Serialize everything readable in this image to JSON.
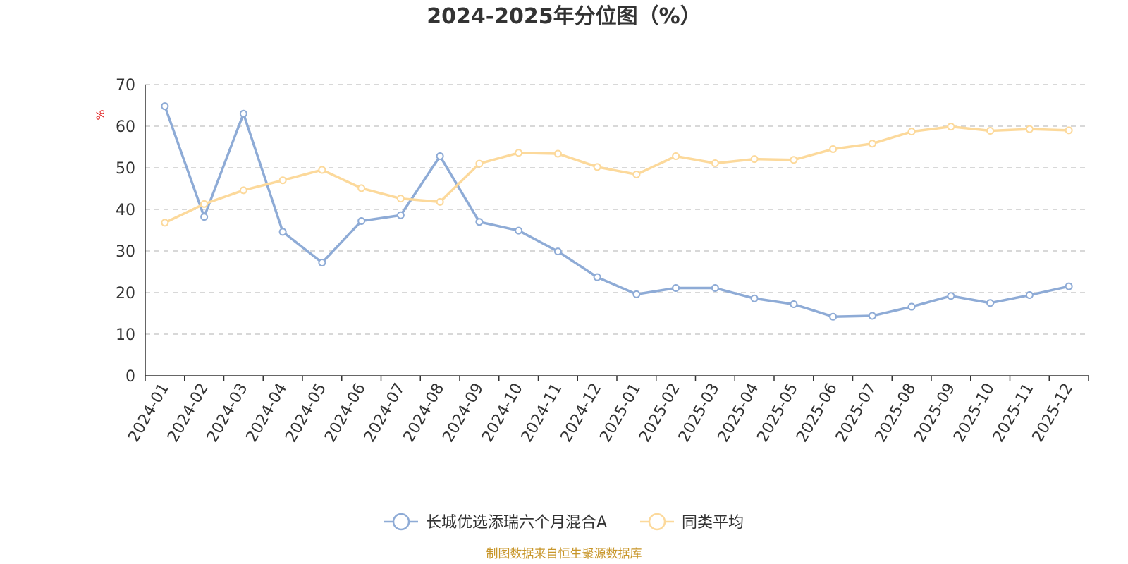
{
  "chart_data": {
    "type": "line",
    "title": "2024-2025年分位图（%）",
    "ylabel": "%",
    "xlabel": "",
    "ylim": [
      0,
      70
    ],
    "yticks": [
      0,
      10,
      20,
      30,
      40,
      50,
      60,
      70
    ],
    "grid": true,
    "legend_position": "bottom-center",
    "categories": [
      "2024-01",
      "2024-02",
      "2024-03",
      "2024-04",
      "2024-05",
      "2024-06",
      "2024-07",
      "2024-08",
      "2024-09",
      "2024-10",
      "2024-11",
      "2024-12",
      "2025-01",
      "2025-02",
      "2025-03",
      "2025-04",
      "2025-05",
      "2025-06",
      "2025-07",
      "2025-08",
      "2025-09",
      "2025-10",
      "2025-11",
      "2025-12"
    ],
    "series": [
      {
        "name": "长城优选添瑞六个月混合A",
        "color": "#8eabd6",
        "values": [
          64.8,
          38.2,
          63.0,
          34.6,
          27.2,
          37.2,
          38.6,
          52.8,
          37.0,
          34.9,
          29.9,
          23.7,
          19.6,
          21.1,
          21.1,
          18.6,
          17.2,
          14.2,
          14.4,
          16.6,
          19.2,
          17.5,
          19.4,
          21.5
        ]
      },
      {
        "name": "同类平均",
        "color": "#fcd99b",
        "values": [
          36.8,
          41.3,
          44.6,
          47.0,
          49.5,
          45.1,
          42.6,
          41.8,
          51.0,
          53.6,
          53.4,
          50.2,
          48.4,
          52.8,
          51.1,
          52.1,
          51.9,
          54.5,
          55.8,
          58.7,
          59.9,
          58.9,
          59.3,
          59.0
        ]
      }
    ]
  },
  "footer": {
    "source": "制图数据来自恒生聚源数据库"
  }
}
